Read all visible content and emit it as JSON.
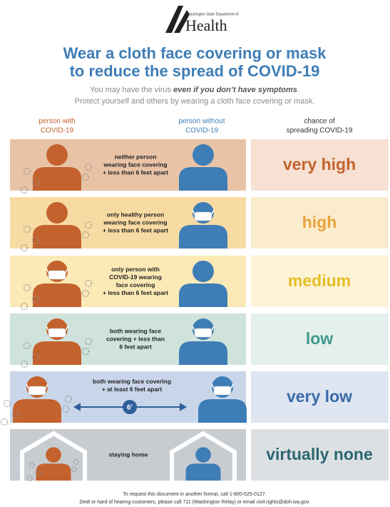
{
  "header": {
    "department": "Washington State Department of",
    "agency": "Health",
    "title": [
      "Wear a cloth face covering or mask",
      "to reduce the spread of COVID-19"
    ],
    "subtitle": {
      "line1": [
        "You may have the virus ",
        "even if you don’t have symptoms",
        "."
      ],
      "line2": "Protect yourself and others by wearing a cloth face covering or mask."
    }
  },
  "columns": {
    "infected": [
      "person with",
      "COVID-19"
    ],
    "healthy": [
      "person without",
      "COVID-19"
    ],
    "risk": [
      "chance of",
      "spreading COVID-19"
    ]
  },
  "rows": [
    {
      "description": [
        "neither person",
        "wearing face covering",
        "+ less than 6 feet apart"
      ],
      "risk": "very high"
    },
    {
      "description": [
        "only healthy person",
        "wearing face covering",
        "+ less than 6 feet apart"
      ],
      "risk": "high"
    },
    {
      "description": [
        "only person with",
        "COVID-19 wearing",
        "face covering",
        "+ less than 6 feet apart"
      ],
      "risk": "medium"
    },
    {
      "description": [
        "both wearing face",
        "covering + less than",
        "6 feet apart"
      ],
      "risk": "low"
    },
    {
      "description": [
        "both wearing face covering",
        "+ at least 6 feet apart"
      ],
      "distance": "6'",
      "risk": "very low"
    },
    {
      "description": [
        "staying home"
      ],
      "risk": "virtually none"
    }
  ],
  "footer": [
    "To request this document in another format, call 1-800-525-0127.",
    "Deaf or hard of hearing customers, please call 711 (Washington Relay) or email civil.rights@doh.wa.gov."
  ]
}
